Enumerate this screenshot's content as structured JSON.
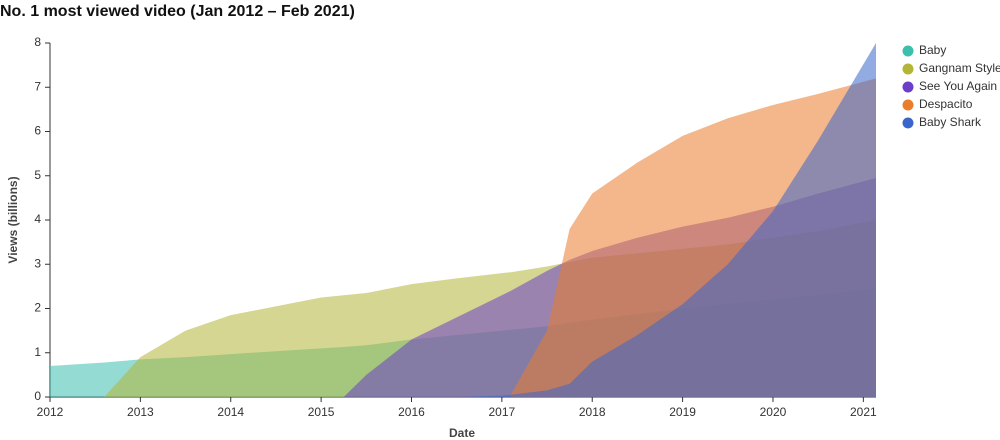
{
  "chart_data": {
    "type": "area",
    "title": "No. 1 most viewed video (Jan 2012 – Feb 2021)",
    "x_label": "Date",
    "y_label": "Views (billions)",
    "x": [
      2012,
      2012.6,
      2013,
      2013.5,
      2014,
      2015,
      2015.25,
      2015.5,
      2016,
      2016.5,
      2017,
      2017.1,
      2017.5,
      2017.75,
      2018,
      2018.5,
      2019,
      2019.5,
      2020,
      2020.5,
      2021.14
    ],
    "xlim": [
      2012,
      2021.14
    ],
    "xticks": [
      2012,
      2013,
      2014,
      2015,
      2016,
      2017,
      2018,
      2019,
      2020,
      2021
    ],
    "ylim": [
      0,
      8
    ],
    "yticks": [
      0,
      1,
      2,
      3,
      4,
      5,
      6,
      7,
      8
    ],
    "series": [
      {
        "name": "Baby",
        "color": "#3dbfae",
        "values": [
          0.7,
          0.78,
          0.85,
          0.9,
          0.97,
          1.1,
          1.13,
          1.17,
          1.3,
          1.4,
          1.5,
          1.52,
          1.6,
          1.68,
          1.75,
          1.87,
          2.0,
          2.1,
          2.2,
          2.3,
          2.45
        ]
      },
      {
        "name": "Gangnam Style",
        "color": "#b3b536",
        "values": [
          null,
          0,
          0.9,
          1.5,
          1.85,
          2.25,
          2.3,
          2.35,
          2.55,
          2.68,
          2.8,
          2.82,
          2.95,
          3.05,
          3.15,
          3.25,
          3.35,
          3.45,
          3.6,
          3.75,
          4.0
        ]
      },
      {
        "name": "See You Again",
        "color": "#6b3fc9",
        "values": [
          null,
          null,
          null,
          null,
          null,
          null,
          0,
          0.5,
          1.3,
          1.8,
          2.3,
          2.4,
          2.85,
          3.1,
          3.3,
          3.6,
          3.85,
          4.05,
          4.3,
          4.6,
          4.95
        ]
      },
      {
        "name": "Despacito",
        "color": "#ea7c2c",
        "values": [
          null,
          null,
          null,
          null,
          null,
          null,
          null,
          null,
          null,
          null,
          null,
          0.05,
          1.5,
          3.8,
          4.6,
          5.3,
          5.9,
          6.3,
          6.6,
          6.85,
          7.2
        ]
      },
      {
        "name": "Baby Shark",
        "color": "#3a66cc",
        "values": [
          null,
          null,
          null,
          null,
          null,
          null,
          null,
          null,
          null,
          0,
          0.03,
          0.05,
          0.15,
          0.3,
          0.8,
          1.4,
          2.1,
          3.0,
          4.2,
          5.8,
          8.0
        ]
      }
    ]
  }
}
